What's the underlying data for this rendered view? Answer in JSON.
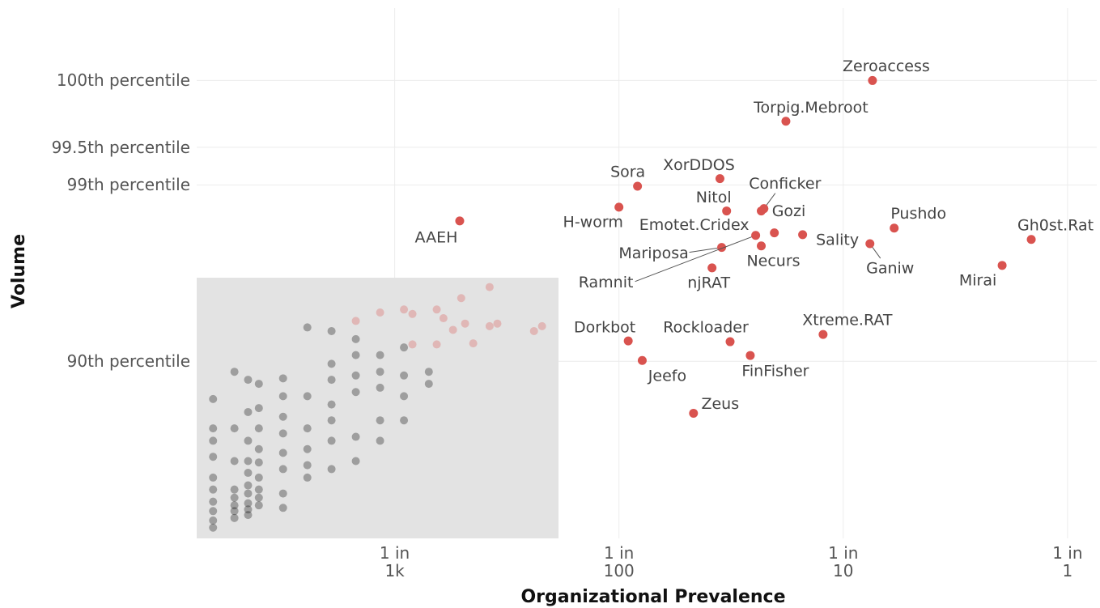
{
  "chart_data": {
    "type": "scatter",
    "x_label": "Organizational Prevalence",
    "y_label": "Volume",
    "log_x": true,
    "grid": true,
    "xlim": [
      0.000131,
      1.35
    ],
    "ylim": [
      24.5,
      100.25
    ],
    "xticks": [
      {
        "value": 0.001,
        "label": "1 in\n1k"
      },
      {
        "value": 0.01,
        "label": "1 in\n100"
      },
      {
        "value": 0.1,
        "label": "1 in\n10"
      },
      {
        "value": 1,
        "label": "1 in\n1"
      }
    ],
    "yticks": [
      {
        "value": 90,
        "label": "90th percentile"
      },
      {
        "value": 99,
        "label": "99th percentile"
      },
      {
        "value": 99.5,
        "label": "99.5th percentile"
      },
      {
        "value": 100,
        "label": "100th percentile"
      }
    ],
    "series": [
      {
        "color": "#d9534f",
        "alpha": 1,
        "labels": [
          "Zeroaccess",
          "Torpig.Mebroot",
          "Sora",
          "XorDDOS",
          "H-worm",
          "Nitol",
          "Conficker",
          "Gozi",
          "Emotet.Cridex",
          "Mariposa",
          "Ramnit",
          "Necurs",
          "Sality",
          "Ganiw",
          "Pushdo",
          "Gh0st.Rat",
          "Mirai",
          "njRAT",
          "AAEH",
          "Dorkbot",
          "Rockloader",
          "Xtreme.RAT",
          "FinFisher",
          "Jeefo",
          "Zeus"
        ],
        "x": [
          0.135,
          0.0555,
          0.0121,
          0.0282,
          0.01,
          0.0302,
          0.0443,
          0.0431,
          0.0493,
          0.0287,
          0.0407,
          0.0431,
          0.0659,
          0.1315,
          0.1687,
          0.689,
          0.511,
          0.026,
          0.00195,
          0.011,
          0.0313,
          0.0813,
          0.0385,
          0.0127,
          0.0215
        ],
        "values": [
          100,
          99.74,
          98.98,
          99.1,
          98.59,
          98.51,
          98.56,
          98.51,
          97.97,
          97.53,
          97.9,
          97.58,
          97.92,
          97.65,
          98.1,
          97.78,
          96.88,
          96.78,
          98.28,
          92.13,
          92.06,
          92.71,
          90.66,
          90.1,
          81.75
        ]
      },
      {
        "color": "#000000",
        "alpha": 0.3,
        "x": [
          0.000155,
          0.000155,
          0.000155,
          0.000155,
          0.000155,
          0.000155,
          0.000155,
          0.000155,
          0.000155,
          0.000155,
          0.000193,
          0.000193,
          0.000193,
          0.000193,
          0.000193,
          0.000193,
          0.000193,
          0.000193,
          0.000222,
          0.000222,
          0.000222,
          0.000222,
          0.000222,
          0.000222,
          0.000222,
          0.000222,
          0.000222,
          0.000222,
          0.000248,
          0.000248,
          0.000248,
          0.000248,
          0.000248,
          0.000248,
          0.000248,
          0.000248,
          0.000248,
          0.000318,
          0.000318,
          0.000318,
          0.000318,
          0.000318,
          0.000318,
          0.000318,
          0.000318,
          0.000408,
          0.000408,
          0.000408,
          0.000408,
          0.000408,
          0.000408,
          0.000523,
          0.000523,
          0.000523,
          0.000523,
          0.000523,
          0.000523,
          0.000523,
          0.000671,
          0.000671,
          0.000671,
          0.000671,
          0.000671,
          0.000671,
          0.000861,
          0.000861,
          0.000861,
          0.000861,
          0.000861,
          0.0011,
          0.0011,
          0.0011,
          0.0011,
          0.00142,
          0.00142
        ],
        "values": [
          84.5,
          78.3,
          75,
          70,
          62,
          56.5,
          50.1,
          44.5,
          38.3,
          33.1,
          88.7,
          78.3,
          68.5,
          56.5,
          52.3,
          48,
          44.5,
          40,
          87.6,
          82,
          75,
          68.5,
          64,
          58.5,
          54.5,
          49.2,
          45.5,
          42,
          87,
          82.8,
          78.3,
          72.5,
          68,
          62,
          56.5,
          52.3,
          48,
          87.8,
          85,
          81,
          77,
          71.3,
          65.5,
          54.5,
          46.5,
          93.3,
          85,
          78.3,
          72.5,
          67,
          62,
          93,
          89.7,
          87.6,
          83.5,
          80.2,
          75,
          65.5,
          92.3,
          90.7,
          88.2,
          85.7,
          76.1,
          68.5,
          90.7,
          88.7,
          86.4,
          80.2,
          75,
          91.5,
          88.2,
          85,
          80.2,
          88.7,
          87
        ]
      },
      {
        "color": "#d9534f",
        "alpha": 0.3,
        "x": [
          0.000671,
          0.000861,
          0.0011,
          0.0012,
          0.00154,
          0.00165,
          0.00182,
          0.00198,
          0.00206,
          0.00265,
          0.00265,
          0.00287,
          0.00418,
          0.00454,
          0.00154,
          0.00224,
          0.0012
        ],
        "values": [
          93.8,
          94.4,
          94.6,
          94.3,
          94.6,
          94,
          93.1,
          95.3,
          93.6,
          95.9,
          93.4,
          93.6,
          93,
          93.4,
          91.8,
          91.9,
          91.8
        ]
      }
    ]
  }
}
